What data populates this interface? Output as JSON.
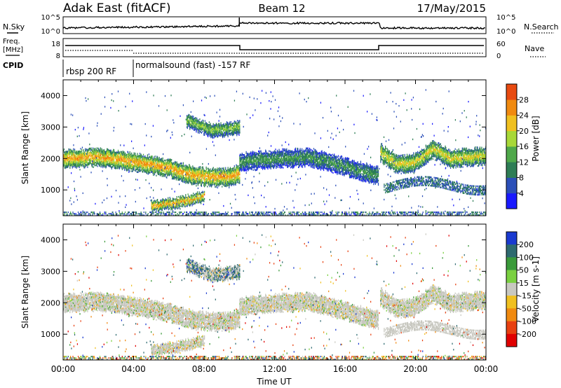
{
  "header": {
    "title": "Adak East (fitACF)",
    "beam": "Beam 12",
    "date": "17/May/2015"
  },
  "top_panels": {
    "nsky_label": "N.Sky",
    "nsearch_label": "N.Search",
    "noise_ticks_left": [
      "10^5",
      "10^0"
    ],
    "noise_ticks_right": [
      "10^5",
      "10^0"
    ],
    "freq_label": "Freq.",
    "freq_unit": "[MHz]",
    "freq_ticks": [
      "18",
      "8"
    ],
    "nave_label": "Nave",
    "nave_ticks": [
      "60",
      "0"
    ],
    "cpid_label": "CPID",
    "cpid_segments": [
      {
        "label": "rbsp 200 RF",
        "start_hour": 0.0
      },
      {
        "label": "normalsound (fast) -157 RF",
        "start_hour": 4.0
      }
    ]
  },
  "chart_data": [
    {
      "type": "heatmap",
      "name": "power",
      "ylabel": "Slant Range [km]",
      "xlabel": "",
      "ylim": [
        180,
        4500
      ],
      "xlim_hours": [
        0,
        24
      ],
      "y_ticks": [
        "1000",
        "2000",
        "3000",
        "4000"
      ],
      "colorbar": {
        "label": "Power [dB]",
        "ticks": [
          "4",
          "8",
          "12",
          "16",
          "20",
          "24",
          "28"
        ],
        "colors": [
          "#1a1aff",
          "#2b4fb8",
          "#2e7d55",
          "#4fa84a",
          "#a8d838",
          "#f0c020",
          "#f08a10",
          "#e84a10",
          "#e80000"
        ]
      },
      "echo_bands": [
        {
          "hours": [
            0.0,
            2.0,
            4.0,
            6.0,
            7.5,
            9.0,
            10.0
          ],
          "range_km": [
            2000,
            2050,
            1900,
            1700,
            1450,
            1400,
            1500
          ],
          "peak_db": 24
        },
        {
          "hours": [
            10.0,
            12.0,
            14.0,
            16.0,
            17.9
          ],
          "range_km": [
            1900,
            2000,
            2050,
            1750,
            1450
          ],
          "peak_db": 12
        },
        {
          "hours": [
            18.0,
            19.0,
            20.0,
            21.0,
            22.0,
            24.0
          ],
          "range_km": [
            2200,
            1800,
            1900,
            2300,
            2000,
            2100
          ],
          "peak_db": 20
        },
        {
          "hours": [
            5.0,
            6.5,
            8.0
          ],
          "range_km": [
            500,
            600,
            800
          ],
          "peak_db": 24
        },
        {
          "hours": [
            7.0,
            8.5,
            10.0
          ],
          "range_km": [
            3200,
            2900,
            3000
          ],
          "peak_db": 16
        }
      ]
    },
    {
      "type": "heatmap",
      "name": "velocity",
      "ylabel": "Slant Range [km]",
      "xlabel": "Time UT",
      "ylim": [
        180,
        4500
      ],
      "xlim_hours": [
        0,
        24
      ],
      "y_ticks": [
        "1000",
        "2000",
        "3000",
        "4000"
      ],
      "x_ticks": [
        "00:00",
        "04:00",
        "08:00",
        "12:00",
        "16:00",
        "20:00",
        "00:00"
      ],
      "colorbar": {
        "label": "Velocity [m s-1]",
        "ticks": [
          "200",
          "100",
          "50",
          "15",
          "-15",
          "-50",
          "-100",
          "-200"
        ],
        "colors": [
          "#1a3ad0",
          "#2e6a70",
          "#3a9a3a",
          "#7ad040",
          "#c8c8c0",
          "#f0c020",
          "#f08a10",
          "#e84010",
          "#e00000"
        ]
      }
    }
  ]
}
